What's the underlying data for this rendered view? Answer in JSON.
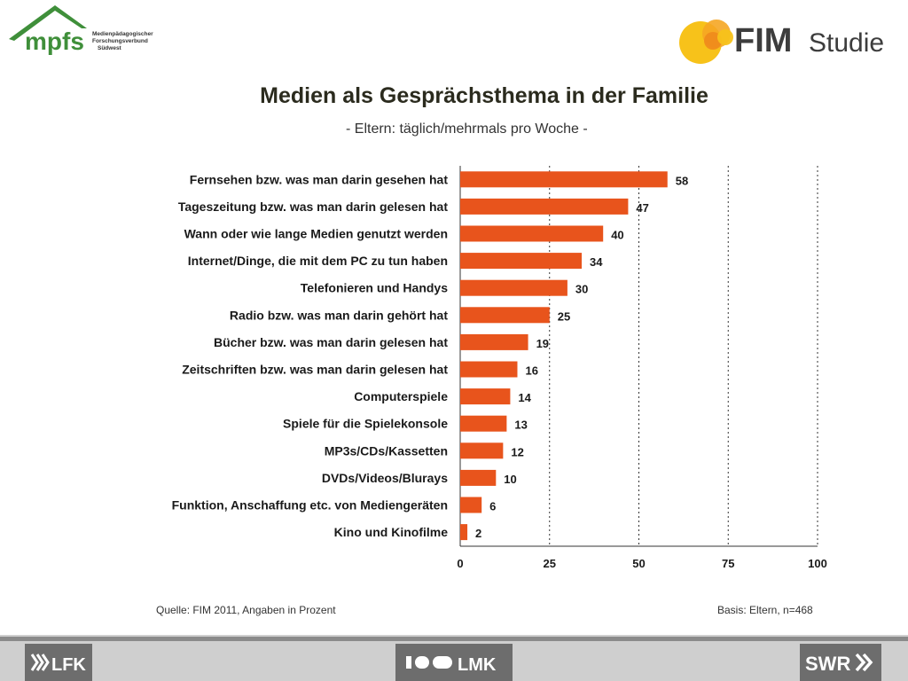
{
  "header": {
    "mpfs_logo": {
      "icon": "mpfs-house-logo",
      "name": "mpfs",
      "tagline_lines": [
        "Medienpädagogischer",
        "Forschungsverbund",
        "Südwest"
      ]
    },
    "fim_logo": {
      "icon": "fim-circles-logo",
      "name": "FIM",
      "suffix": "Studie"
    }
  },
  "chart_data": {
    "type": "bar",
    "orientation": "horizontal",
    "title": "Medien als Gesprächsthema in der Familie",
    "subtitle": "- Eltern: täglich/mehrmals pro Woche -",
    "categories": [
      "Fernsehen bzw. was man darin gesehen hat",
      "Tageszeitung bzw. was man darin gelesen hat",
      "Wann oder wie lange Medien genutzt werden",
      "Internet/Dinge, die mit dem PC zu tun haben",
      "Telefonieren und Handys",
      "Radio bzw. was man darin gehört hat",
      "Bücher bzw. was man darin gelesen hat",
      "Zeitschriften bzw. was man darin gelesen hat",
      "Computerspiele",
      "Spiele für die Spielekonsole",
      "MP3s/CDs/Kassetten",
      "DVDs/Videos/Blurays",
      "Funktion, Anschaffung etc. von Mediengeräten",
      "Kino und Kinofilme"
    ],
    "values": [
      58,
      47,
      40,
      34,
      30,
      25,
      19,
      16,
      14,
      13,
      12,
      10,
      6,
      2
    ],
    "xlim": [
      0,
      100
    ],
    "xticks": [
      0,
      25,
      50,
      75,
      100
    ],
    "grid": "vertical-dotted",
    "bar_color": "#e8541c"
  },
  "footer": {
    "source": "Quelle: FIM 2011, Angaben in Prozent",
    "basis": "Basis: Eltern, n=468",
    "partners": [
      {
        "icon": "lfk-logo",
        "label": "LFK"
      },
      {
        "icon": "lmk-logo",
        "label": "LMK"
      },
      {
        "icon": "swr-logo",
        "label": "SWR"
      }
    ]
  }
}
